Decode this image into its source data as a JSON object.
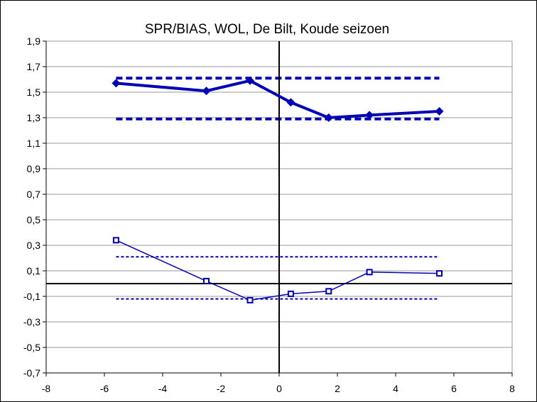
{
  "chart_data": {
    "type": "line",
    "title": "SPR/BIAS, WOL, De Bilt, Koude seizoen",
    "xlabel": "",
    "ylabel": "",
    "xlim": [
      -8,
      8
    ],
    "ylim": [
      -0.7,
      1.9
    ],
    "xticks": [
      -8,
      -6,
      -4,
      -2,
      0,
      2,
      4,
      6,
      8
    ],
    "xtick_labels": [
      "-8",
      "-6",
      "-4",
      "-2",
      "0",
      "2",
      "4",
      "6",
      "8"
    ],
    "yticks": [
      1.9,
      1.7,
      1.5,
      1.3,
      1.1,
      0.9,
      0.7,
      0.5,
      0.3,
      0.1,
      -0.1,
      -0.3,
      -0.5,
      -0.7
    ],
    "ytick_labels": [
      "1,9",
      "1,7",
      "1,5",
      "1,3",
      "1,1",
      "0,9",
      "0,7",
      "0,5",
      "0,3",
      "0,1",
      "-0,1",
      "-0,3",
      "-0,5",
      "-0,7"
    ],
    "grid": "horizontal",
    "legend": "none",
    "color": "#0000b4",
    "series": [
      {
        "style": "thick-line-diamond-markers",
        "points": [
          [
            -5.6,
            1.57
          ],
          [
            -2.5,
            1.51
          ],
          [
            -1.0,
            1.59
          ],
          [
            0.4,
            1.42
          ],
          [
            1.7,
            1.3
          ],
          [
            3.1,
            1.32
          ],
          [
            5.5,
            1.35
          ]
        ]
      },
      {
        "style": "thin-line-square-markers",
        "points": [
          [
            -5.6,
            0.34
          ],
          [
            -2.5,
            0.02
          ],
          [
            -1.0,
            -0.13
          ],
          [
            0.4,
            -0.08
          ],
          [
            1.7,
            -0.06
          ],
          [
            3.1,
            0.09
          ],
          [
            5.5,
            0.08
          ]
        ]
      }
    ],
    "reference_lines": [
      {
        "style": "thick-dashed",
        "y": 1.61,
        "x": [
          -5.6,
          5.5
        ]
      },
      {
        "style": "thick-dashed",
        "y": 1.29,
        "x": [
          -5.6,
          5.5
        ]
      },
      {
        "style": "thin-dashed",
        "y": 0.21,
        "x": [
          -5.6,
          5.5
        ]
      },
      {
        "style": "thin-dashed",
        "y": -0.12,
        "x": [
          -5.6,
          5.5
        ]
      }
    ]
  }
}
